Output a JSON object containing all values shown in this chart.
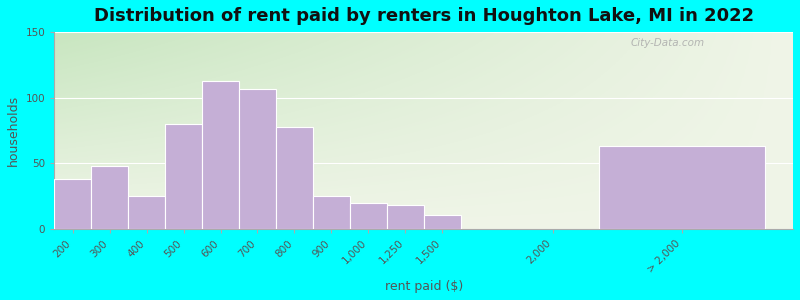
{
  "title": "Distribution of rent paid by renters in Houghton Lake, MI in 2022",
  "xlabel": "rent paid ($)",
  "ylabel": "households",
  "bar_categories": [
    "200",
    "300",
    "400",
    "500",
    "600",
    "700",
    "800",
    "900",
    "1,000",
    "1,250",
    "1,500"
  ],
  "bar_values": [
    38,
    48,
    25,
    80,
    113,
    107,
    78,
    25,
    20,
    18,
    11
  ],
  "last_bar_label": "> 2,000",
  "last_bar_value": 63,
  "tick_labels": [
    "200",
    "300",
    "400",
    "500",
    "600",
    "700",
    "800",
    "900",
    "1,000",
    "1,250",
    "1,500",
    "2,000",
    "> 2,000"
  ],
  "bar_color": "#c5afd6",
  "bar_edge_color": "#ffffff",
  "background_outer": "#00ffff",
  "plot_bg_top_left": "#c8e6c0",
  "plot_bg_right": "#f0f5e8",
  "ylim": [
    0,
    150
  ],
  "yticks": [
    0,
    50,
    100,
    150
  ],
  "title_fontsize": 13,
  "axis_label_fontsize": 9,
  "tick_fontsize": 7.5,
  "watermark": "City-Data.com"
}
